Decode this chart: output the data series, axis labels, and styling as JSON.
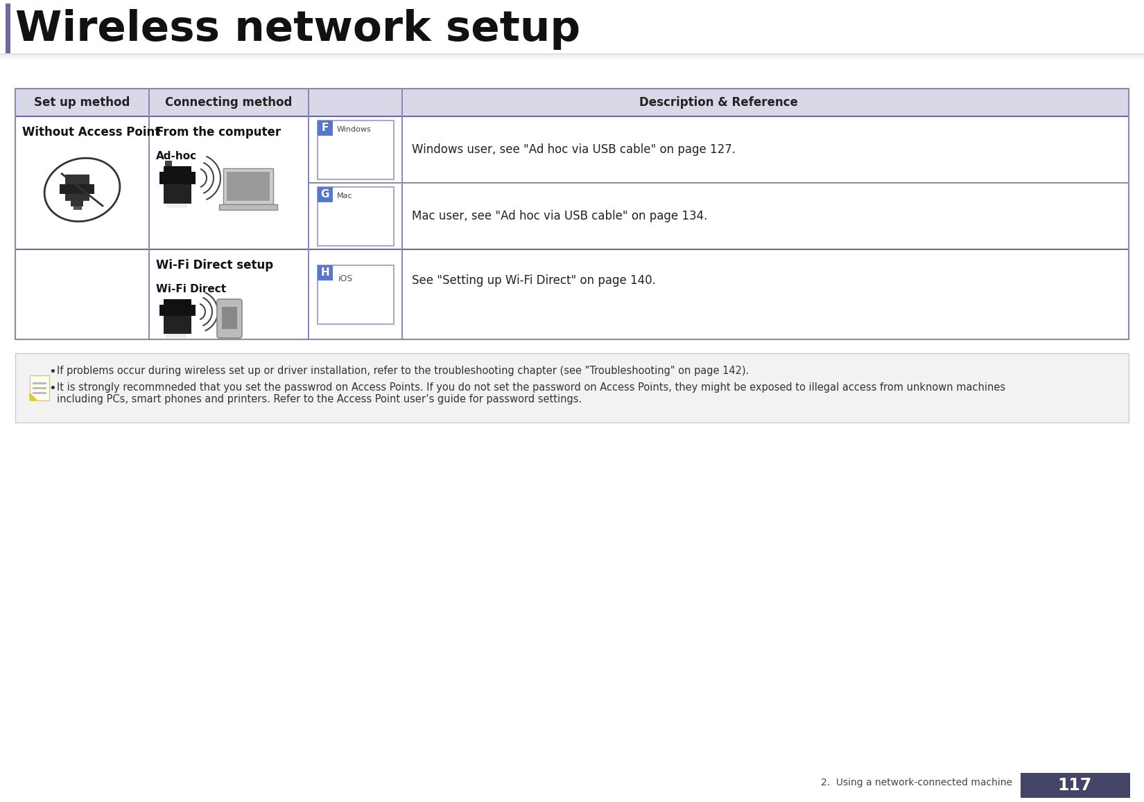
{
  "title": "Wireless network setup",
  "page_num": "117",
  "page_footer": "2.  Using a network-connected machine",
  "bg_color": "#ffffff",
  "title_bar_color": "#6b6b9e",
  "header_bg": "#d8d8e8",
  "table_border_color": "#8888bb",
  "note_bg": "#f2f2f2",
  "note_border": "#cccccc",
  "col_headers": [
    "Set up method",
    "Connecting method",
    "Description & Reference"
  ],
  "row1_col1": "Without Access Point",
  "row1_col2_title": "From the computer",
  "row1_col2_sub": "Ad-hoc",
  "row2_col2_title": "Wi-Fi Direct setup",
  "row2_col2_sub": "Wi-Fi Direct",
  "fbox_F_label": "F",
  "fbox_F_text": "Windows",
  "fbox_G_label": "G",
  "fbox_G_text": "Mac",
  "fbox_H_label": "H",
  "desc_F": "Windows user, see \"Ad hoc via USB cable\" on page 127.",
  "desc_G": "Mac user, see \"Ad hoc via USB cable\" on page 134.",
  "desc_H": "See \"Setting up Wi-Fi Direct\" on page 140.",
  "note1": "If problems occur during wireless set up or driver installation, refer to the troubleshooting chapter (see \"Troubleshooting\" on page 142).",
  "note2": "It is strongly recommneded that you set the passwrod on Access Points. If you do not set the password on Access Points, they might be exposed to illegal access from unknown machines\nincluding PCs, smart phones and printers. Refer to the Access Point user’s guide for password settings.",
  "accent_color": "#6666aa",
  "box_label_color": "#5577cc",
  "shadow_line_color": "#aaaacc",
  "divider_color": "#8888bb",
  "dark_divider": "#6666aa"
}
